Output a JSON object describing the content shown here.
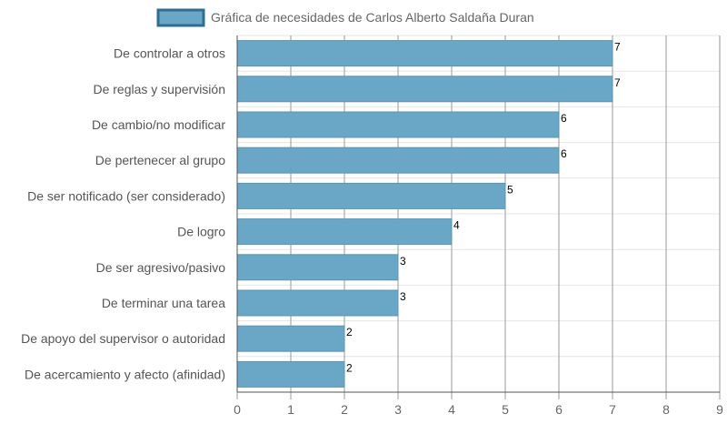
{
  "chart_data": {
    "type": "bar",
    "orientation": "horizontal",
    "legend_position": "top",
    "grid": true,
    "xlim": [
      0,
      9
    ],
    "ticks": [
      "0",
      "1",
      "2",
      "3",
      "4",
      "5",
      "6",
      "7",
      "8",
      "9"
    ],
    "categories": [
      "De controlar a otros",
      "De reglas y supervisión",
      "De cambio/no modificar",
      "De pertenecer al grupo",
      "De ser notificado (ser considerado)",
      "De logro",
      "De ser agresivo/pasivo",
      "De terminar una tarea",
      "De apoyo del supervisor o autoridad",
      "De acercamiento y afecto (afinidad)"
    ],
    "series": [
      {
        "name": "Gráfica de necesidades de Carlos Alberto Saldaña Duran",
        "values": [
          7,
          7,
          6,
          6,
          5,
          4,
          3,
          3,
          2,
          2
        ]
      }
    ],
    "colors": {
      "bar_fill": "#6aa6c5",
      "bar_stroke": "#5b94b3",
      "legend_fill": "#6aa6c5",
      "legend_stroke": "#2e6d94",
      "grid_major": "#999999",
      "grid_minor": "#e6e6e6",
      "axis": "#555555"
    }
  }
}
